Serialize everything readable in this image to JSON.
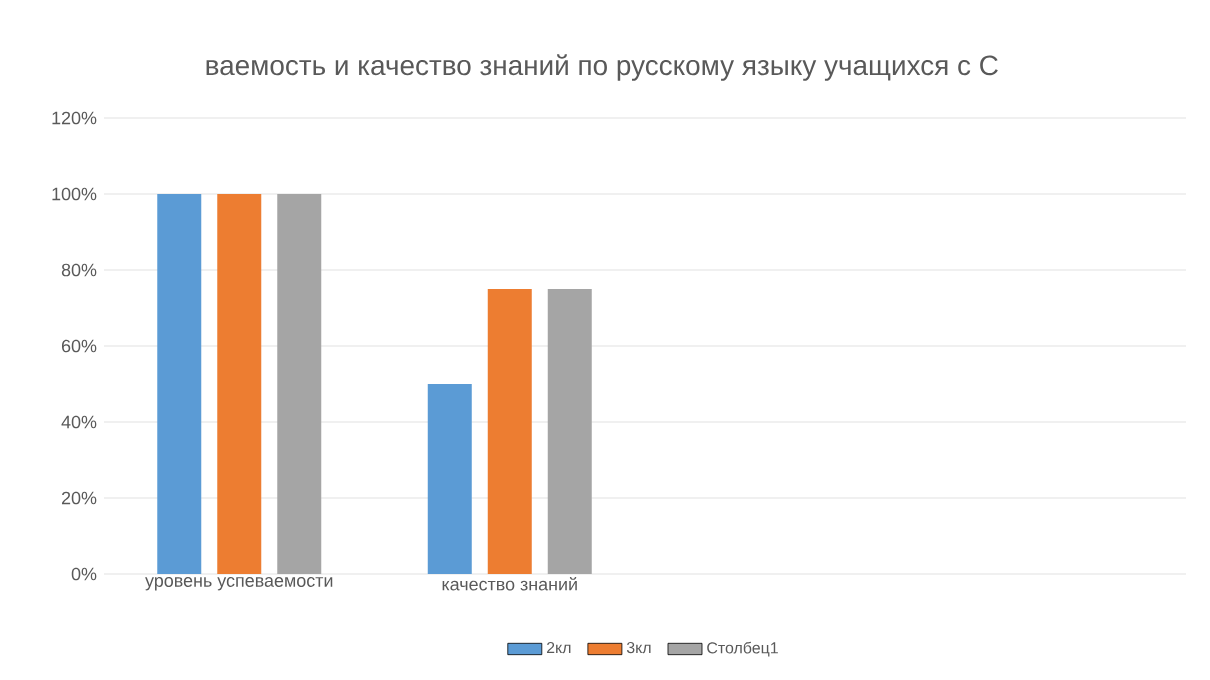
{
  "chart_data": {
    "type": "bar",
    "title": "ваемость и качество знаний по русскому языку  учащихся с С",
    "categories": [
      "уровень успеваемости",
      "качество знаний",
      null,
      null
    ],
    "series": [
      {
        "name": "2кл",
        "color": "#5b9bd5",
        "values": [
          100,
          50,
          null,
          null
        ]
      },
      {
        "name": "3кл",
        "color": "#ed7d31",
        "values": [
          100,
          75,
          null,
          null
        ]
      },
      {
        "name": "Столбец1",
        "color": "#a5a5a5",
        "values": [
          100,
          75,
          null,
          null
        ]
      }
    ],
    "ylim": [
      0,
      120
    ],
    "yticks": [
      {
        "value": 0,
        "label": "0%"
      },
      {
        "value": 20,
        "label": "20%"
      },
      {
        "value": 40,
        "label": "40%"
      },
      {
        "value": 60,
        "label": "60%"
      },
      {
        "value": 80,
        "label": "80%"
      },
      {
        "value": 100,
        "label": "100%"
      },
      {
        "value": 120,
        "label": "120%"
      }
    ],
    "grid": "y",
    "legend": "bottom"
  }
}
